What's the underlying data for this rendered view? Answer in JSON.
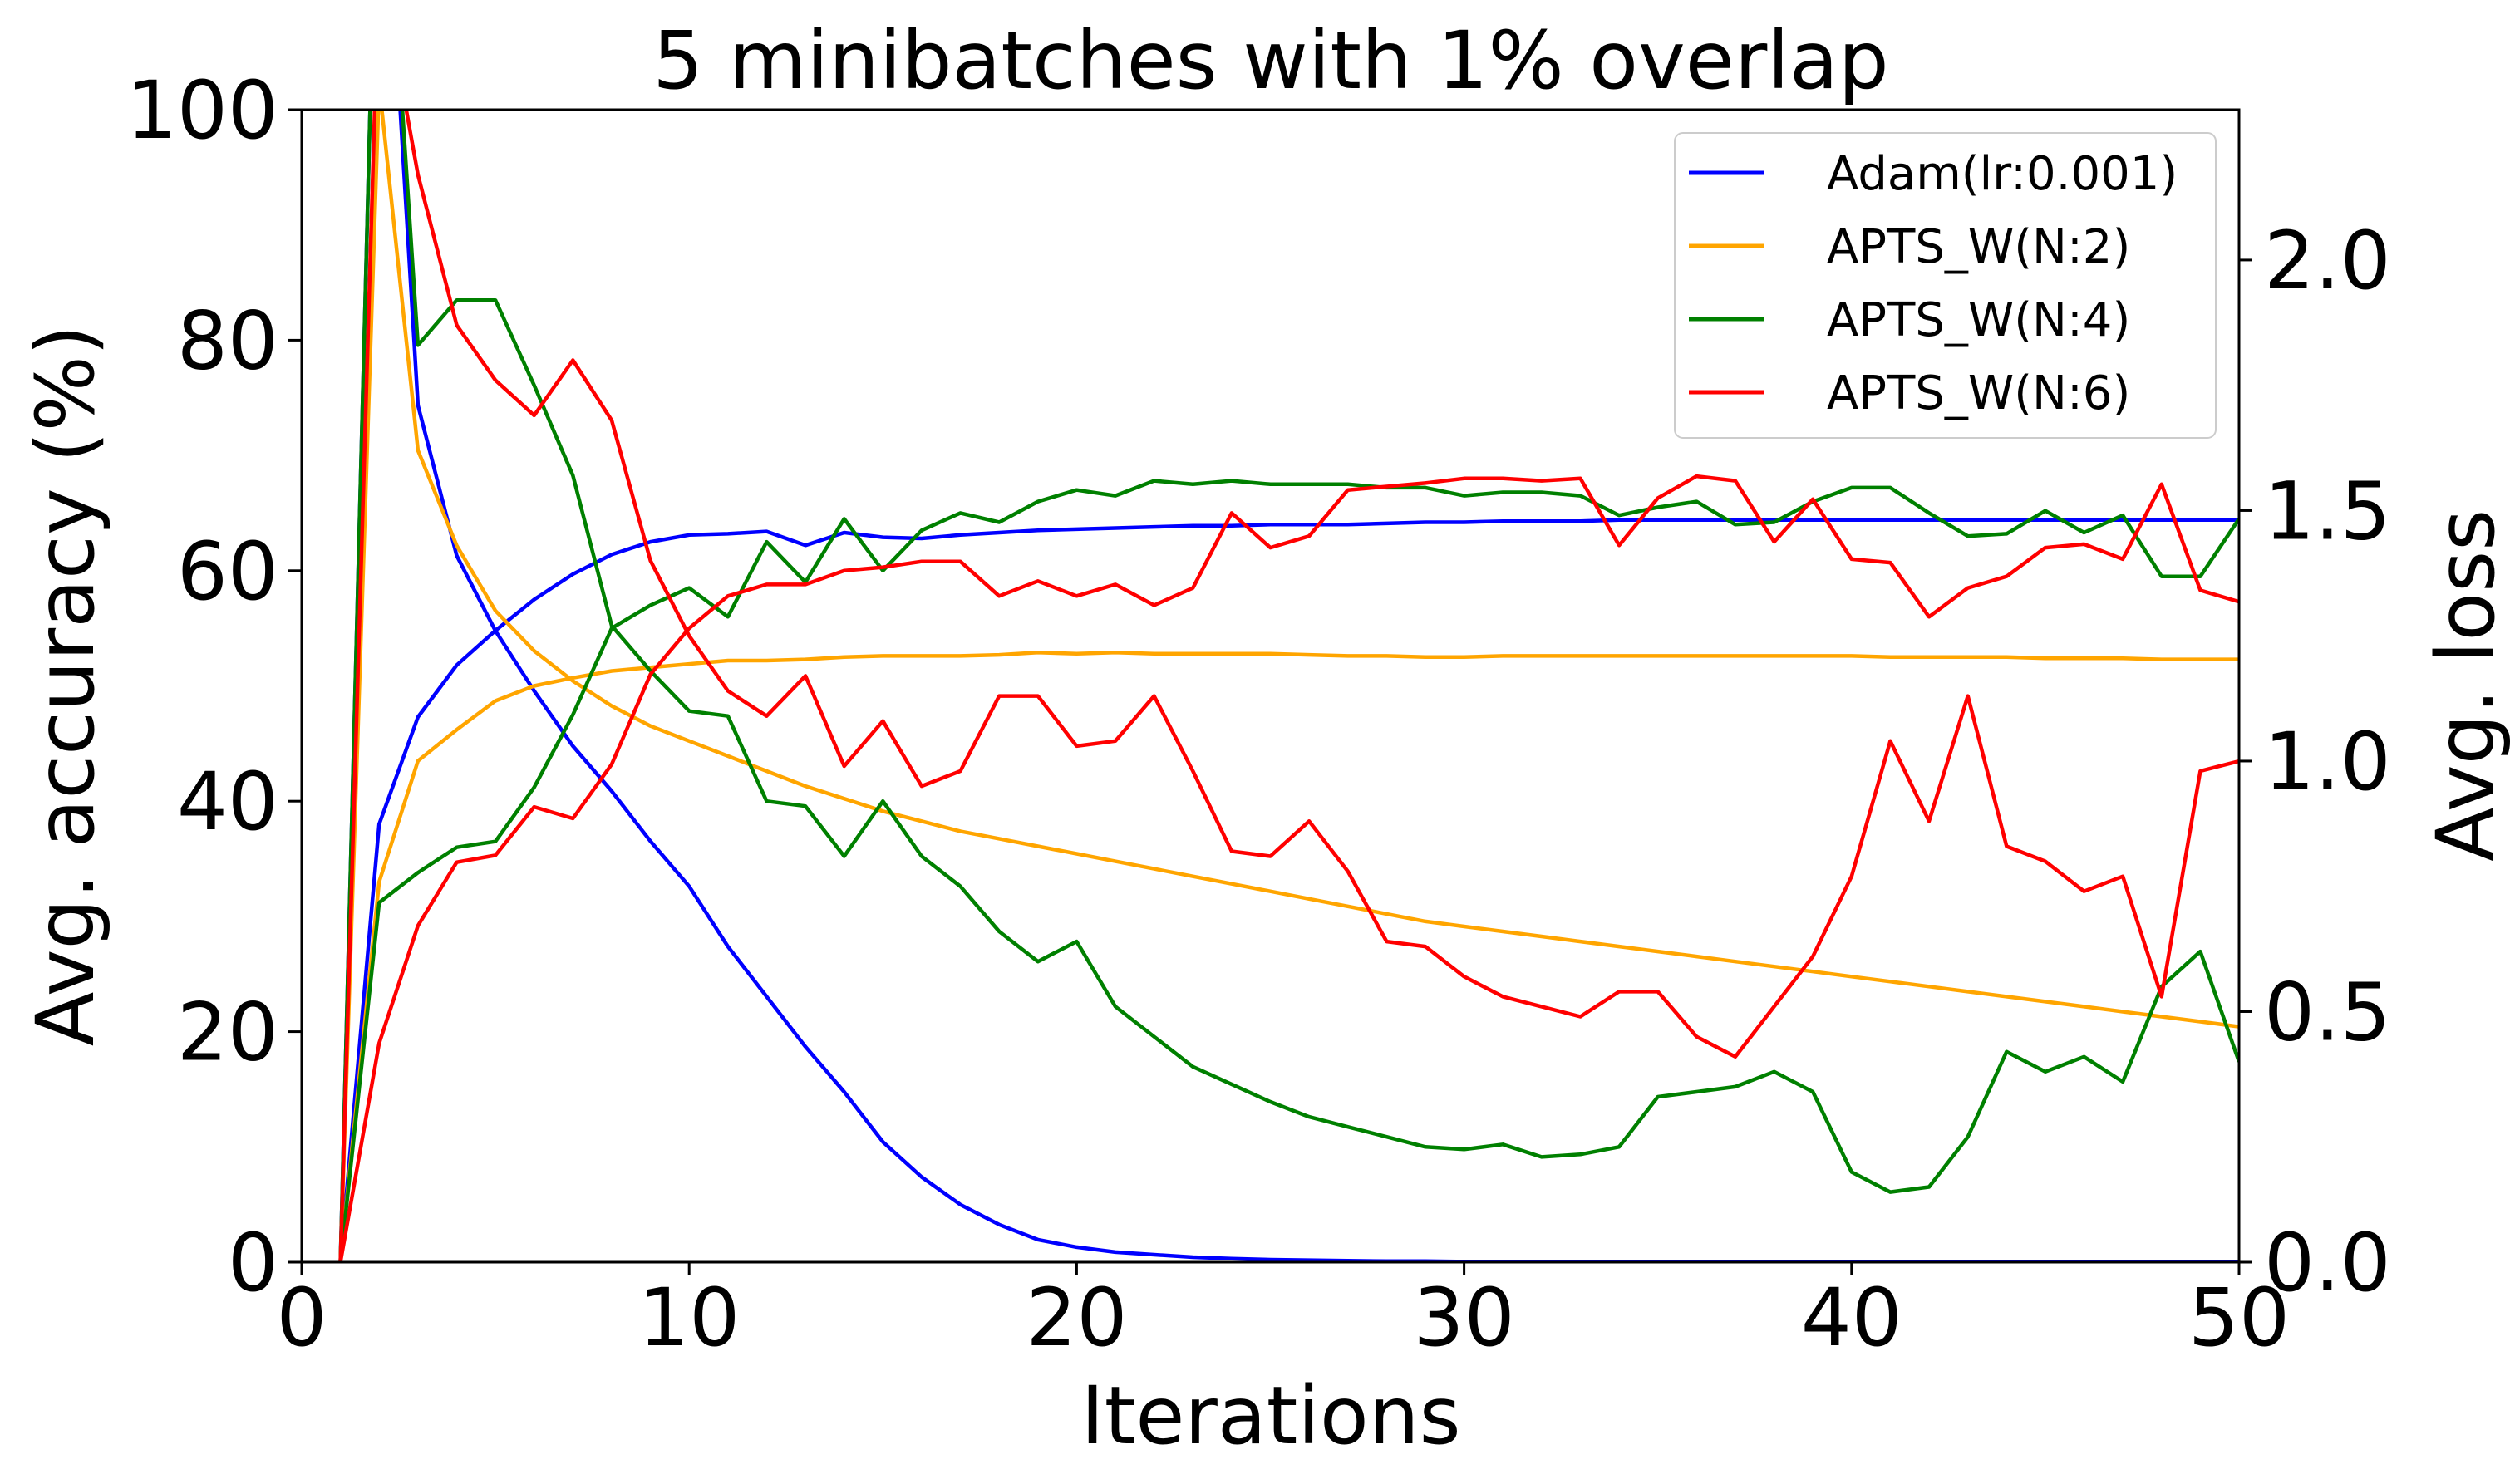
{
  "chart_data": {
    "type": "line",
    "title": "5 minibatches with 1% overlap",
    "xlabel": "Iterations",
    "ylabel": "Avg. accuracy (%)",
    "y2label": "Avg. loss",
    "xlim": [
      0,
      50
    ],
    "ylim": [
      0,
      100
    ],
    "y2lim": [
      0,
      2.3
    ],
    "x_ticks": [
      "0",
      "10",
      "20",
      "30",
      "40",
      "50"
    ],
    "y_ticks": [
      "0",
      "20",
      "40",
      "60",
      "80",
      "100"
    ],
    "y2_ticks": [
      "0.0",
      "0.5",
      "1.0",
      "1.5",
      "2.0"
    ],
    "grid": false,
    "legend_position": "top-right",
    "x": [
      1,
      2,
      3,
      4,
      5,
      6,
      7,
      8,
      9,
      10,
      11,
      12,
      13,
      14,
      15,
      16,
      17,
      18,
      19,
      20,
      21,
      22,
      23,
      24,
      25,
      26,
      27,
      28,
      29,
      30,
      31,
      32,
      33,
      34,
      35,
      36,
      37,
      38,
      39,
      40,
      41,
      42,
      43,
      44,
      45,
      46,
      47,
      48,
      49,
      50
    ],
    "series": [
      {
        "name": "Adam(lr:0.001)",
        "color": "#0000ff",
        "accuracy": [
          0,
          38,
          47.3,
          51.8,
          54.8,
          57.5,
          59.7,
          61.4,
          62.5,
          63.1,
          63.2,
          63.4,
          62.2,
          63.3,
          62.9,
          62.8,
          63.1,
          63.3,
          63.5,
          63.6,
          63.7,
          63.8,
          63.9,
          63.9,
          64.0,
          64.0,
          64.0,
          64.1,
          64.2,
          64.2,
          64.3,
          64.3,
          64.3,
          64.4,
          64.4,
          64.4,
          64.4,
          64.4,
          64.4,
          64.4,
          64.4,
          64.4,
          64.4,
          64.4,
          64.4,
          64.4,
          64.4,
          64.4,
          64.4,
          64.4
        ],
        "loss": [
          0,
          3.0,
          1.71,
          1.41,
          1.26,
          1.14,
          1.03,
          0.94,
          0.84,
          0.75,
          0.63,
          0.53,
          0.43,
          0.34,
          0.24,
          0.17,
          0.115,
          0.075,
          0.045,
          0.03,
          0.02,
          0.015,
          0.01,
          0.007,
          0.005,
          0.004,
          0.003,
          0.002,
          0.002,
          0.001,
          0.001,
          0.001,
          0.001,
          0.001,
          0.001,
          0.001,
          0.001,
          0.001,
          0.001,
          0.001,
          0.001,
          0.001,
          0.001,
          0.001,
          0.001,
          0.001,
          0.001,
          0.001,
          0.001,
          0.001
        ]
      },
      {
        "name": "APTS_W(N:2)",
        "color": "#ffa500",
        "accuracy": [
          0,
          33,
          43.5,
          46.2,
          48.7,
          50.0,
          50.7,
          51.3,
          51.6,
          51.9,
          52.2,
          52.2,
          52.3,
          52.5,
          52.6,
          52.6,
          52.6,
          52.7,
          52.9,
          52.8,
          52.9,
          52.8,
          52.8,
          52.8,
          52.8,
          52.7,
          52.6,
          52.6,
          52.5,
          52.5,
          52.6,
          52.6,
          52.6,
          52.6,
          52.6,
          52.6,
          52.6,
          52.6,
          52.6,
          52.6,
          52.5,
          52.5,
          52.5,
          52.5,
          52.4,
          52.4,
          52.4,
          52.3,
          52.3,
          52.3
        ],
        "loss": [
          0,
          2.35,
          1.62,
          1.43,
          1.3,
          1.22,
          1.16,
          1.11,
          1.07,
          1.04,
          1.01,
          0.98,
          0.95,
          0.925,
          0.9,
          0.88,
          0.86,
          0.845,
          0.83,
          0.815,
          0.8,
          0.785,
          0.77,
          0.755,
          0.74,
          0.725,
          0.71,
          0.695,
          0.68,
          0.67,
          0.66,
          0.65,
          0.64,
          0.63,
          0.62,
          0.61,
          0.6,
          0.59,
          0.58,
          0.57,
          0.56,
          0.55,
          0.54,
          0.53,
          0.52,
          0.51,
          0.5,
          0.49,
          0.48,
          0.47
        ]
      },
      {
        "name": "APTS_W(N:4)",
        "color": "#008000",
        "accuracy": [
          0,
          31.2,
          33.8,
          36.0,
          36.5,
          41.2,
          47.5,
          55.0,
          57.0,
          58.5,
          56.0,
          62.5,
          59.0,
          64.5,
          60.0,
          63.5,
          65.0,
          64.2,
          66.0,
          67.0,
          66.5,
          67.8,
          67.5,
          67.8,
          67.5,
          67.5,
          67.5,
          67.2,
          67.2,
          66.5,
          66.8,
          66.8,
          66.5,
          64.8,
          65.5,
          66.0,
          64.0,
          64.2,
          66.0,
          67.2,
          67.2,
          65.0,
          63.0,
          63.2,
          65.2,
          63.3,
          64.8,
          59.5,
          59.5,
          64.5
        ],
        "loss": [
          0,
          3.0,
          1.83,
          1.92,
          1.92,
          1.75,
          1.57,
          1.27,
          1.18,
          1.1,
          1.09,
          0.92,
          0.91,
          0.81,
          0.92,
          0.81,
          0.75,
          0.66,
          0.6,
          0.64,
          0.51,
          0.45,
          0.39,
          0.355,
          0.32,
          0.29,
          0.27,
          0.25,
          0.23,
          0.225,
          0.235,
          0.21,
          0.215,
          0.23,
          0.33,
          0.34,
          0.35,
          0.38,
          0.34,
          0.18,
          0.14,
          0.15,
          0.25,
          0.42,
          0.38,
          0.41,
          0.36,
          0.55,
          0.62,
          0.4
        ]
      },
      {
        "name": "APTS_W(N:6)",
        "color": "#ff0000",
        "accuracy": [
          0,
          19,
          29.2,
          34.7,
          35.3,
          39.5,
          38.5,
          43.2,
          51.0,
          55.0,
          57.8,
          58.8,
          58.8,
          60.0,
          60.3,
          60.8,
          60.8,
          57.8,
          59.1,
          57.8,
          58.8,
          57.0,
          58.5,
          65.0,
          62.0,
          63.0,
          67.0,
          67.3,
          67.6,
          68.0,
          68.0,
          67.8,
          68.0,
          62.2,
          66.3,
          68.2,
          67.8,
          62.5,
          66.2,
          61.0,
          60.7,
          56.0,
          58.5,
          59.5,
          62.0,
          62.3,
          61.0,
          67.5,
          58.3,
          57.3
        ],
        "loss": [
          0,
          2.6,
          2.17,
          1.87,
          1.76,
          1.69,
          1.8,
          1.68,
          1.4,
          1.25,
          1.14,
          1.09,
          1.17,
          0.99,
          1.08,
          0.95,
          0.98,
          1.13,
          1.13,
          1.03,
          1.04,
          1.13,
          0.98,
          0.82,
          0.81,
          0.88,
          0.78,
          0.64,
          0.63,
          0.57,
          0.53,
          0.51,
          0.49,
          0.54,
          0.54,
          0.45,
          0.41,
          0.51,
          0.61,
          0.77,
          1.04,
          0.88,
          1.13,
          0.83,
          0.8,
          0.74,
          0.77,
          0.53,
          0.98,
          1.0
        ]
      }
    ]
  }
}
